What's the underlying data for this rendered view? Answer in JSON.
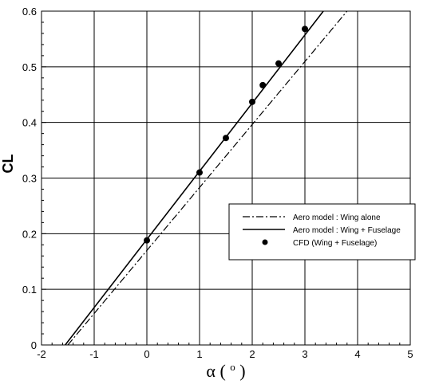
{
  "chart_data": {
    "type": "line",
    "title": "",
    "xlabel": "α (°)",
    "xlabel_symbol": "α",
    "xlabel_unit": "o",
    "ylabel": "CL",
    "xlim": [
      -2,
      5
    ],
    "ylim": [
      0,
      0.6
    ],
    "x_ticks": [
      -2,
      -1,
      0,
      1,
      2,
      3,
      4,
      5
    ],
    "y_ticks": [
      0,
      0.1,
      0.2,
      0.3,
      0.4,
      0.5,
      0.6
    ],
    "x_tick_labels": [
      "-2",
      "-1",
      "0",
      "1",
      "2",
      "3",
      "4",
      "5"
    ],
    "y_tick_labels": [
      "0",
      "0.1",
      "0.2",
      "0.3",
      "0.4",
      "0.5",
      "0.6"
    ],
    "grid": true,
    "legend_position": "right",
    "series": [
      {
        "name": "Aero model : Wing alone",
        "style": "dash-dot",
        "color": "#000000",
        "x": [
          -1.5,
          3.8
        ],
        "y": [
          0.0,
          0.6
        ]
      },
      {
        "name": "Aero model : Wing + Fuselage",
        "style": "solid",
        "color": "#000000",
        "x": [
          -1.55,
          3.35
        ],
        "y": [
          0.0,
          0.6
        ]
      },
      {
        "name": "CFD (Wing + Fuselage)",
        "style": "marker",
        "color": "#000000",
        "x": [
          0,
          1,
          1.5,
          2,
          2.2,
          2.5,
          3
        ],
        "y": [
          0.188,
          0.31,
          0.372,
          0.437,
          0.467,
          0.506,
          0.568
        ]
      }
    ]
  }
}
